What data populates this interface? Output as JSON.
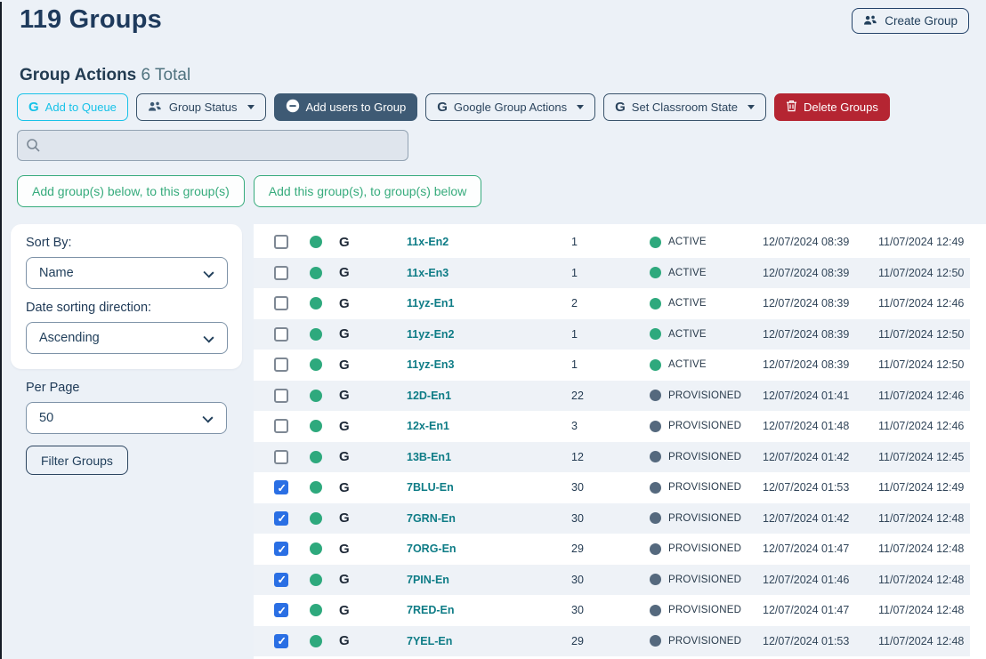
{
  "header": {
    "title": "119 Groups",
    "create_group_label": "Create Group"
  },
  "actions": {
    "heading": "Group Actions",
    "total_label": "6 Total",
    "buttons": {
      "add_to_queue": "Add to Queue",
      "group_status": "Group Status",
      "add_users": "Add users to Group",
      "google_actions": "Google Group Actions",
      "set_classroom": "Set Classroom State",
      "delete_groups": "Delete Groups"
    },
    "search_value": "",
    "add_below_to_this": "Add group(s) below, to this group(s)",
    "add_this_to_below": "Add this group(s), to group(s) below"
  },
  "filters": {
    "sort_by_label": "Sort By:",
    "sort_by_value": "Name",
    "date_direction_label": "Date sorting direction:",
    "date_direction_value": "Ascending",
    "per_page_label": "Per Page",
    "per_page_value": "50",
    "filter_button": "Filter Groups"
  },
  "icons": {
    "create_group": "users-icon",
    "group_status": "users-icon",
    "add_to_queue": "google-g-icon",
    "google_actions": "google-g-icon",
    "set_classroom": "google-g-icon",
    "add_users": "minus-circle-icon",
    "delete_groups": "trash-icon",
    "search": "search-icon"
  },
  "colors": {
    "page_bg": "#ecf1f7",
    "navy_text": "#22405c",
    "cyan_accent": "#17c2e8",
    "dark_button": "#3e5a74",
    "danger_red": "#b52532",
    "green_accent": "#36ab7c",
    "active_dot": "#2ea97d",
    "provisioned_dot": "#55697e",
    "link_teal": "#0e7c86",
    "checked_blue": "#2a6fe4",
    "stripe_bg": "#eef2f7"
  },
  "table": {
    "rows": [
      {
        "checked": false,
        "name": "11x-En2",
        "members": "1",
        "status": "ACTIVE",
        "status_type": "active",
        "created": "12/07/2024 08:39",
        "updated": "11/07/2024 12:49"
      },
      {
        "checked": false,
        "name": "11x-En3",
        "members": "1",
        "status": "ACTIVE",
        "status_type": "active",
        "created": "12/07/2024 08:39",
        "updated": "11/07/2024 12:50"
      },
      {
        "checked": false,
        "name": "11yz-En1",
        "members": "2",
        "status": "ACTIVE",
        "status_type": "active",
        "created": "12/07/2024 08:39",
        "updated": "11/07/2024 12:46"
      },
      {
        "checked": false,
        "name": "11yz-En2",
        "members": "1",
        "status": "ACTIVE",
        "status_type": "active",
        "created": "12/07/2024 08:39",
        "updated": "11/07/2024 12:50"
      },
      {
        "checked": false,
        "name": "11yz-En3",
        "members": "1",
        "status": "ACTIVE",
        "status_type": "active",
        "created": "12/07/2024 08:39",
        "updated": "11/07/2024 12:50"
      },
      {
        "checked": false,
        "name": "12D-En1",
        "members": "22",
        "status": "PROVISIONED",
        "status_type": "provisioned",
        "created": "12/07/2024 01:41",
        "updated": "11/07/2024 12:46"
      },
      {
        "checked": false,
        "name": "12x-En1",
        "members": "3",
        "status": "PROVISIONED",
        "status_type": "provisioned",
        "created": "12/07/2024 01:48",
        "updated": "11/07/2024 12:46"
      },
      {
        "checked": false,
        "name": "13B-En1",
        "members": "12",
        "status": "PROVISIONED",
        "status_type": "provisioned",
        "created": "12/07/2024 01:42",
        "updated": "11/07/2024 12:45"
      },
      {
        "checked": true,
        "name": "7BLU-En",
        "members": "30",
        "status": "PROVISIONED",
        "status_type": "provisioned",
        "created": "12/07/2024 01:53",
        "updated": "11/07/2024 12:49"
      },
      {
        "checked": true,
        "name": "7GRN-En",
        "members": "30",
        "status": "PROVISIONED",
        "status_type": "provisioned",
        "created": "12/07/2024 01:42",
        "updated": "11/07/2024 12:48"
      },
      {
        "checked": true,
        "name": "7ORG-En",
        "members": "29",
        "status": "PROVISIONED",
        "status_type": "provisioned",
        "created": "12/07/2024 01:47",
        "updated": "11/07/2024 12:48"
      },
      {
        "checked": true,
        "name": "7PIN-En",
        "members": "30",
        "status": "PROVISIONED",
        "status_type": "provisioned",
        "created": "12/07/2024 01:46",
        "updated": "11/07/2024 12:48"
      },
      {
        "checked": true,
        "name": "7RED-En",
        "members": "30",
        "status": "PROVISIONED",
        "status_type": "provisioned",
        "created": "12/07/2024 01:47",
        "updated": "11/07/2024 12:48"
      },
      {
        "checked": true,
        "name": "7YEL-En",
        "members": "29",
        "status": "PROVISIONED",
        "status_type": "provisioned",
        "created": "12/07/2024 01:53",
        "updated": "11/07/2024 12:48"
      }
    ]
  }
}
